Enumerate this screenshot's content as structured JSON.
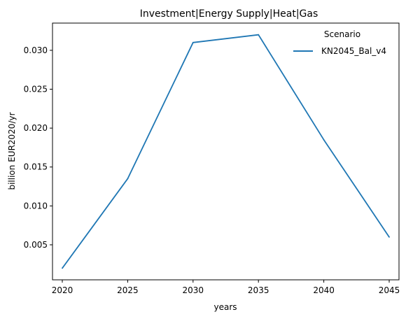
{
  "chart_data": {
    "type": "line",
    "title": "Investment|Energy Supply|Heat|Gas",
    "xlabel": "years",
    "ylabel": "billion EUR2020/yr",
    "x": [
      2020,
      2025,
      2030,
      2035,
      2040,
      2045
    ],
    "xticks": [
      "2020",
      "2025",
      "2030",
      "2035",
      "2040",
      "2045"
    ],
    "yticks": [
      "0.005",
      "0.010",
      "0.015",
      "0.020",
      "0.025",
      "0.030"
    ],
    "xlim": [
      2019.25,
      2045.75
    ],
    "ylim": [
      0.0005,
      0.0335
    ],
    "grid": false,
    "legend": {
      "title": "Scenario",
      "placement": "top-right"
    },
    "series": [
      {
        "name": "KN2045_Bal_v4",
        "color": "#1f77b4",
        "values": [
          0.002,
          0.0135,
          0.031,
          0.032,
          0.0185,
          0.006
        ]
      }
    ]
  }
}
